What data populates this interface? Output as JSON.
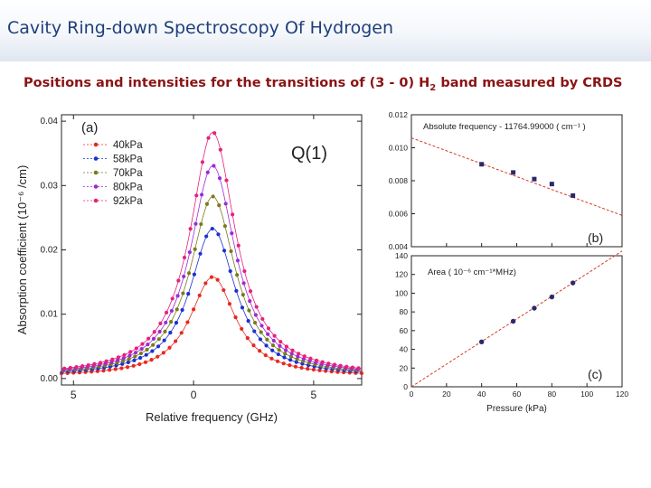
{
  "slide": {
    "title": "Cavity Ring-down Spectroscopy Of Hydrogen",
    "subtitle_pre": "Positions and intensities for the transitions of (3 - 0) H",
    "subtitle_sub": "2",
    "subtitle_post": " band measured by  CRDS"
  },
  "colors": {
    "header_title": "#1f3f7a",
    "subtitle": "#8a1414",
    "fit_line": "#d63a2a",
    "points_b_c": "#2a2a6a"
  },
  "chart_data": [
    {
      "type": "line",
      "panel_label": "(a)",
      "annotation": "Q(1)",
      "xlabel": "Relative frequency (GHz)",
      "ylabel": "Absorption coefficient (10⁻⁶ /cm)",
      "xlim": [
        -5.5,
        7
      ],
      "ylim": [
        -0.001,
        0.041
      ],
      "x_ticks": [
        -5,
        0,
        5
      ],
      "x_tick_labels": [
        "5",
        "0",
        "5"
      ],
      "y_ticks": [
        0.0,
        0.01,
        0.02,
        0.03,
        0.04
      ],
      "y_tick_labels": [
        "0.00",
        "0.01",
        "0.02",
        "0.03",
        "0.04"
      ],
      "line_center_ghz": 0.8,
      "line_halfwidth_ghz": 1.15,
      "baseline": 0.0003,
      "grid": false,
      "legend_position": "top-left",
      "series": [
        {
          "name": "40kPa",
          "color": "#e8281e",
          "peak": 0.0155
        },
        {
          "name": "58kPa",
          "color": "#1c2fd0",
          "peak": 0.023
        },
        {
          "name": "70kPa",
          "color": "#7a7a1c",
          "peak": 0.028
        },
        {
          "name": "80kPa",
          "color": "#9b2ad8",
          "peak": 0.0328
        },
        {
          "name": "92kPa",
          "color": "#e8207a",
          "peak": 0.038
        }
      ]
    },
    {
      "type": "scatter",
      "panel_label": "(b)",
      "annotation": "Absolute frequency - 11764.99000  ( cm⁻¹ )",
      "xlim": [
        0,
        120
      ],
      "ylim": [
        0.004,
        0.012
      ],
      "y_ticks": [
        0.004,
        0.006,
        0.008,
        0.01,
        0.012
      ],
      "y_tick_labels": [
        "0.004",
        "0.006",
        "0.008",
        "0.010",
        "0.012"
      ],
      "fit_line": [
        [
          0,
          0.0106
        ],
        [
          120,
          0.0059
        ]
      ],
      "x": [
        40,
        58,
        70,
        80,
        92
      ],
      "y": [
        0.009,
        0.0085,
        0.0081,
        0.0078,
        0.0071
      ]
    },
    {
      "type": "scatter",
      "panel_label": "(c)",
      "annotation": "Area  ( 10⁻⁶ cm⁻¹*MHz)",
      "xlabel": "Pressure (kPa)",
      "xlim": [
        0,
        120
      ],
      "ylim": [
        0,
        140
      ],
      "x_ticks": [
        0,
        20,
        40,
        60,
        80,
        100,
        120
      ],
      "x_tick_labels": [
        "0",
        "20",
        "40",
        "60",
        "80",
        "100",
        "120"
      ],
      "y_ticks": [
        0,
        20,
        40,
        60,
        80,
        100,
        120,
        140
      ],
      "y_tick_labels": [
        "0",
        "20",
        "40",
        "60",
        "80",
        "100",
        "120",
        "140"
      ],
      "fit_line": [
        [
          0,
          0
        ],
        [
          120,
          145
        ]
      ],
      "x": [
        40,
        58,
        70,
        80,
        92
      ],
      "y": [
        48,
        70,
        84,
        96,
        111
      ]
    }
  ]
}
